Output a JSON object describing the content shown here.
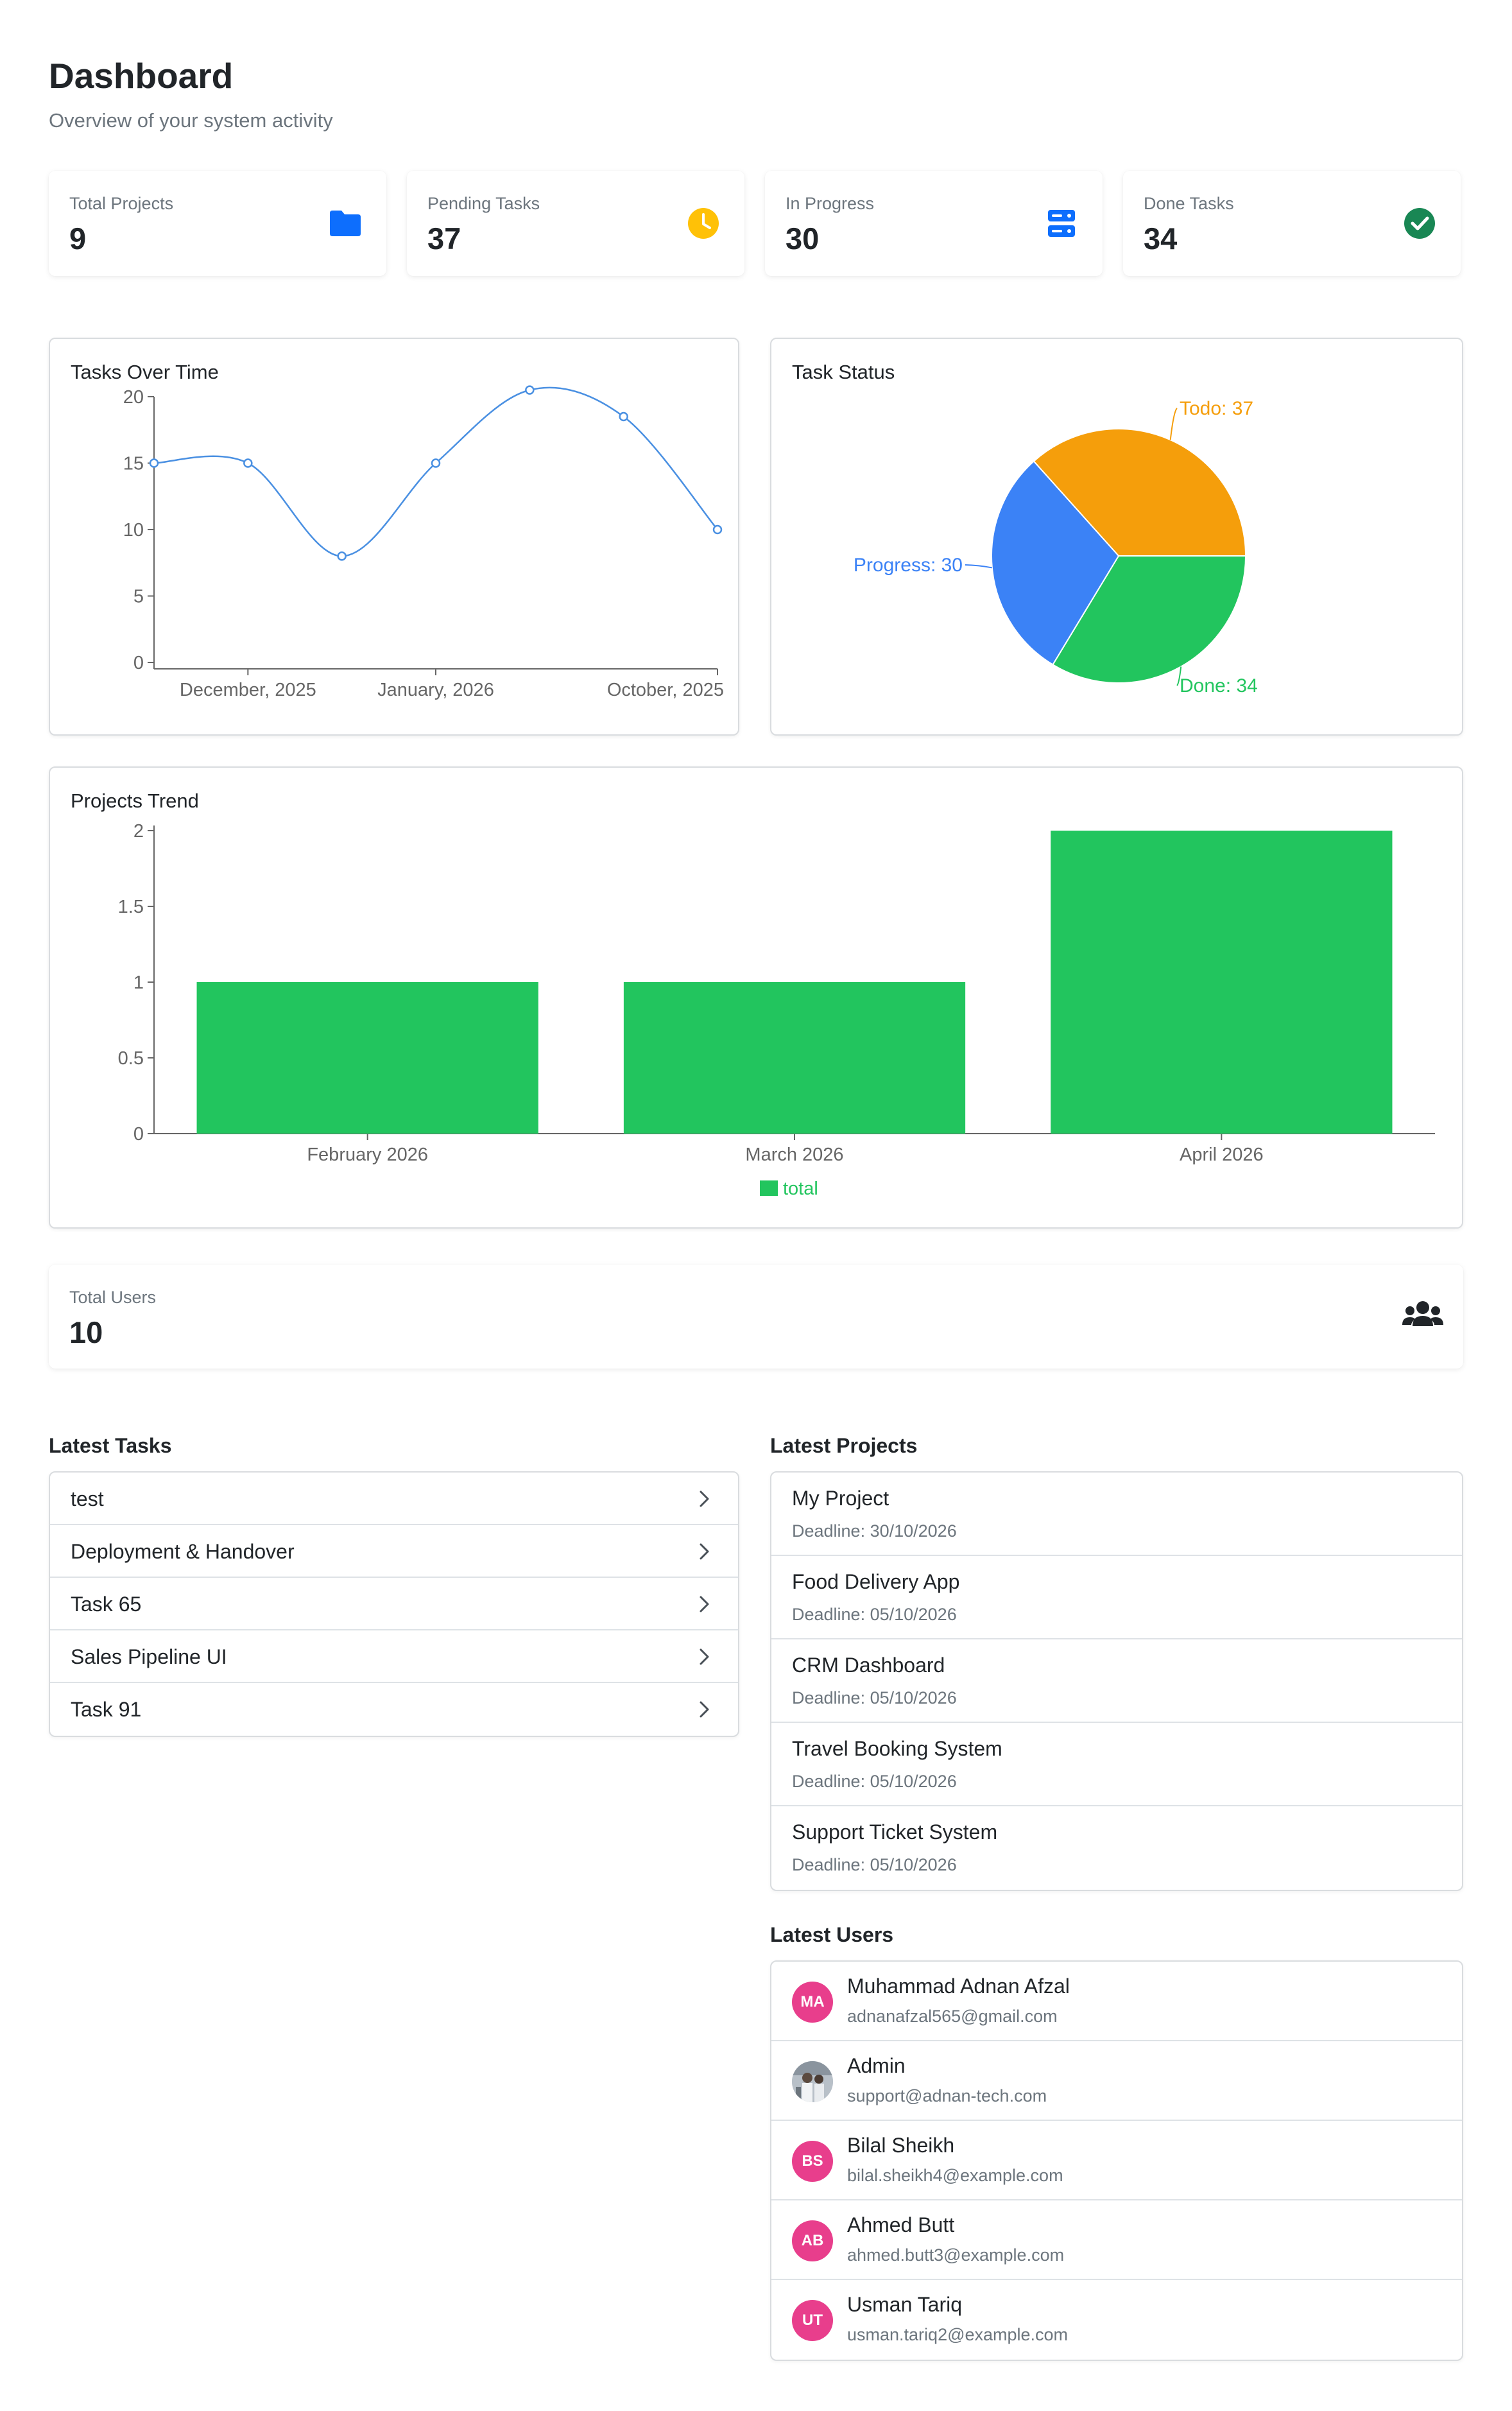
{
  "header": {
    "title": "Dashboard",
    "subtitle": "Overview of your system activity"
  },
  "stats": [
    {
      "label": "Total Projects",
      "value": "9",
      "icon": "folder-icon",
      "color": "#0d6efd"
    },
    {
      "label": "Pending Tasks",
      "value": "37",
      "icon": "clock-icon",
      "color": "#ffc107"
    },
    {
      "label": "In Progress",
      "value": "30",
      "icon": "server-icon",
      "color": "#0d6efd"
    },
    {
      "label": "Done Tasks",
      "value": "34",
      "icon": "check-circle-icon",
      "color": "#198754"
    }
  ],
  "charts": {
    "tasks_over_time": {
      "title": "Tasks Over Time"
    },
    "task_status": {
      "title": "Task Status"
    },
    "projects_trend": {
      "title": "Projects Trend"
    }
  },
  "chart_data": [
    {
      "type": "line",
      "title": "Tasks Over Time",
      "x": [
        "",
        "December, 2025",
        "",
        "January, 2026",
        "",
        "",
        "October, 2025"
      ],
      "tick_labels": [
        "December, 2025",
        "January, 2026",
        "October, 2025"
      ],
      "values": [
        15,
        15,
        8,
        15,
        20.5,
        18.5,
        10
      ],
      "yticks": [
        0,
        5,
        10,
        15,
        20
      ],
      "ylim": [
        0,
        20
      ],
      "color": "#4a90e2",
      "grid": false
    },
    {
      "type": "pie",
      "title": "Task Status",
      "slices": [
        {
          "label": "Todo",
          "value": 37,
          "text": "Todo: 37",
          "color": "#f59e0b"
        },
        {
          "label": "Done",
          "value": 34,
          "text": "Done: 34",
          "color": "#22c55e"
        },
        {
          "label": "Progress",
          "value": 30,
          "text": "Progress: 30",
          "color": "#3b82f6"
        }
      ]
    },
    {
      "type": "bar",
      "title": "Projects Trend",
      "categories": [
        "February 2026",
        "March 2026",
        "April 2026"
      ],
      "series": [
        {
          "name": "total",
          "values": [
            1,
            1,
            2
          ],
          "color": "#22c55e"
        }
      ],
      "yticks": [
        0,
        0.5,
        1,
        1.5,
        2
      ],
      "ytick_labels": [
        "0",
        "0.5",
        "1",
        "1.5",
        "2"
      ],
      "ylim": [
        0,
        2
      ],
      "legend": "bottom",
      "grid": false
    }
  ],
  "users_summary": {
    "label": "Total Users",
    "value": "10",
    "icon": "users-icon"
  },
  "latest_tasks": {
    "title": "Latest Tasks",
    "items": [
      {
        "label": "test"
      },
      {
        "label": "Deployment & Handover"
      },
      {
        "label": "Task 65"
      },
      {
        "label": "Sales Pipeline UI"
      },
      {
        "label": "Task 91"
      }
    ]
  },
  "latest_projects": {
    "title": "Latest Projects",
    "items": [
      {
        "name": "My Project",
        "deadline": "Deadline: 30/10/2026"
      },
      {
        "name": "Food Delivery App",
        "deadline": "Deadline: 05/10/2026"
      },
      {
        "name": "CRM Dashboard",
        "deadline": "Deadline: 05/10/2026"
      },
      {
        "name": "Travel Booking System",
        "deadline": "Deadline: 05/10/2026"
      },
      {
        "name": "Support Ticket System",
        "deadline": "Deadline: 05/10/2026"
      }
    ]
  },
  "latest_users": {
    "title": "Latest Users",
    "items": [
      {
        "initials": "MA",
        "name": "Muhammad Adnan Afzal",
        "email": "adnanafzal565@gmail.com",
        "photo": false
      },
      {
        "initials": "",
        "name": "Admin",
        "email": "support@adnan-tech.com",
        "photo": true
      },
      {
        "initials": "BS",
        "name": "Bilal Sheikh",
        "email": "bilal.sheikh4@example.com",
        "photo": false
      },
      {
        "initials": "AB",
        "name": "Ahmed Butt",
        "email": "ahmed.butt3@example.com",
        "photo": false
      },
      {
        "initials": "UT",
        "name": "Usman Tariq",
        "email": "usman.tariq2@example.com",
        "photo": false
      }
    ]
  },
  "colors": {
    "avatar": "#e83e8c",
    "border": "#d9dcdf"
  }
}
